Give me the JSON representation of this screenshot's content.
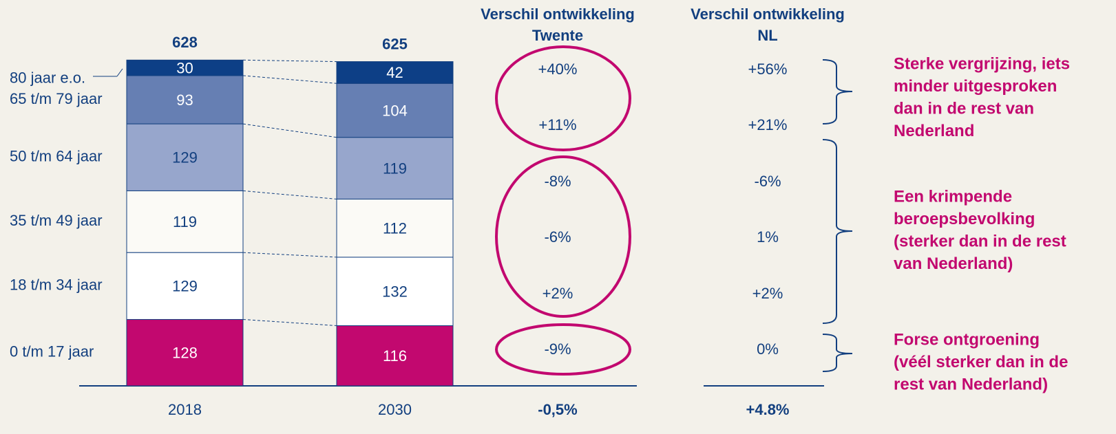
{
  "chart_data": {
    "type": "stacked_bar",
    "categories": [
      "2018",
      "2030"
    ],
    "series": [
      {
        "name": "0 t/m 17 jaar",
        "color": "#c2086f",
        "values": [
          128,
          116
        ]
      },
      {
        "name": "18 t/m 34 jaar",
        "color": "#ffffff",
        "values": [
          129,
          132
        ]
      },
      {
        "name": "35 t/m 49 jaar",
        "color": "#fbfaf6",
        "values": [
          119,
          112
        ]
      },
      {
        "name": "50 t/m 64 jaar",
        "color": "#97a6cc",
        "values": [
          129,
          119
        ]
      },
      {
        "name": "65 t/m 79 jaar",
        "color": "#667fb3",
        "values": [
          93,
          104
        ]
      },
      {
        "name": "80 jaar e.o.",
        "color": "#0d3f86",
        "values": [
          30,
          42
        ]
      }
    ],
    "totals": [
      628,
      625
    ],
    "ylim": [
      0,
      700
    ]
  },
  "differences": [
    {
      "title": [
        "Verschil ontwikkeling",
        "Twente"
      ],
      "rows": [
        "+40%",
        "+11%",
        "-8%",
        "-6%",
        "+2%",
        "-9%"
      ],
      "total": "-0,5%"
    },
    {
      "title": [
        "Verschil ontwikkeling",
        "NL"
      ],
      "rows": [
        "+56%",
        "+21%",
        "-6%",
        "1%",
        "+2%",
        "0%"
      ],
      "total": "+4.8%"
    }
  ],
  "annotations": [
    [
      "Sterke vergrijzing, iets",
      "minder uitgesproken",
      "dan in de rest van",
      "Nederland"
    ],
    [
      "Een krimpende",
      "beroepsbevolking",
      "(sterker dan in de rest",
      "van Nederland)"
    ],
    [
      "Forse ontgroening",
      "(véél sterker dan in de",
      "rest van Nederland)"
    ]
  ]
}
